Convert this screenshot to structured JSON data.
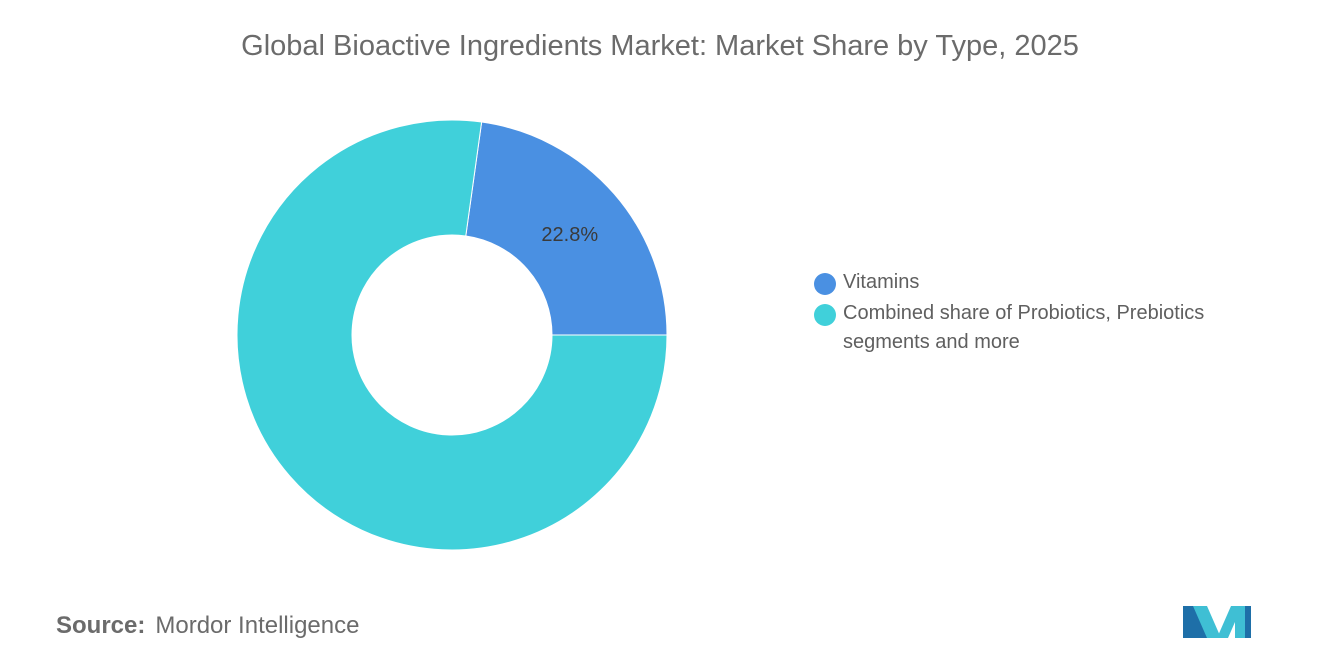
{
  "title": "Global Bioactive Ingredients Market: Market Share by Type, 2025",
  "chart_data": {
    "type": "pie",
    "variant": "donut",
    "title": "Global Bioactive Ingredients Market: Market Share by Type, 2025",
    "slices": [
      {
        "label": "Vitamins",
        "value": 22.8,
        "color": "#4a90e2",
        "data_label": "22.8%"
      },
      {
        "label": "Combined share of Probiotics, Prebiotics segments and more",
        "value": 77.2,
        "color": "#40d0da",
        "data_label": ""
      }
    ],
    "legend_position": "right"
  },
  "source": {
    "label": "Source:",
    "text": "Mordor Intelligence"
  },
  "logo": {
    "name": "mordor-intelligence-logo",
    "colors": [
      "#1e6fa8",
      "#3fbfd4"
    ]
  }
}
